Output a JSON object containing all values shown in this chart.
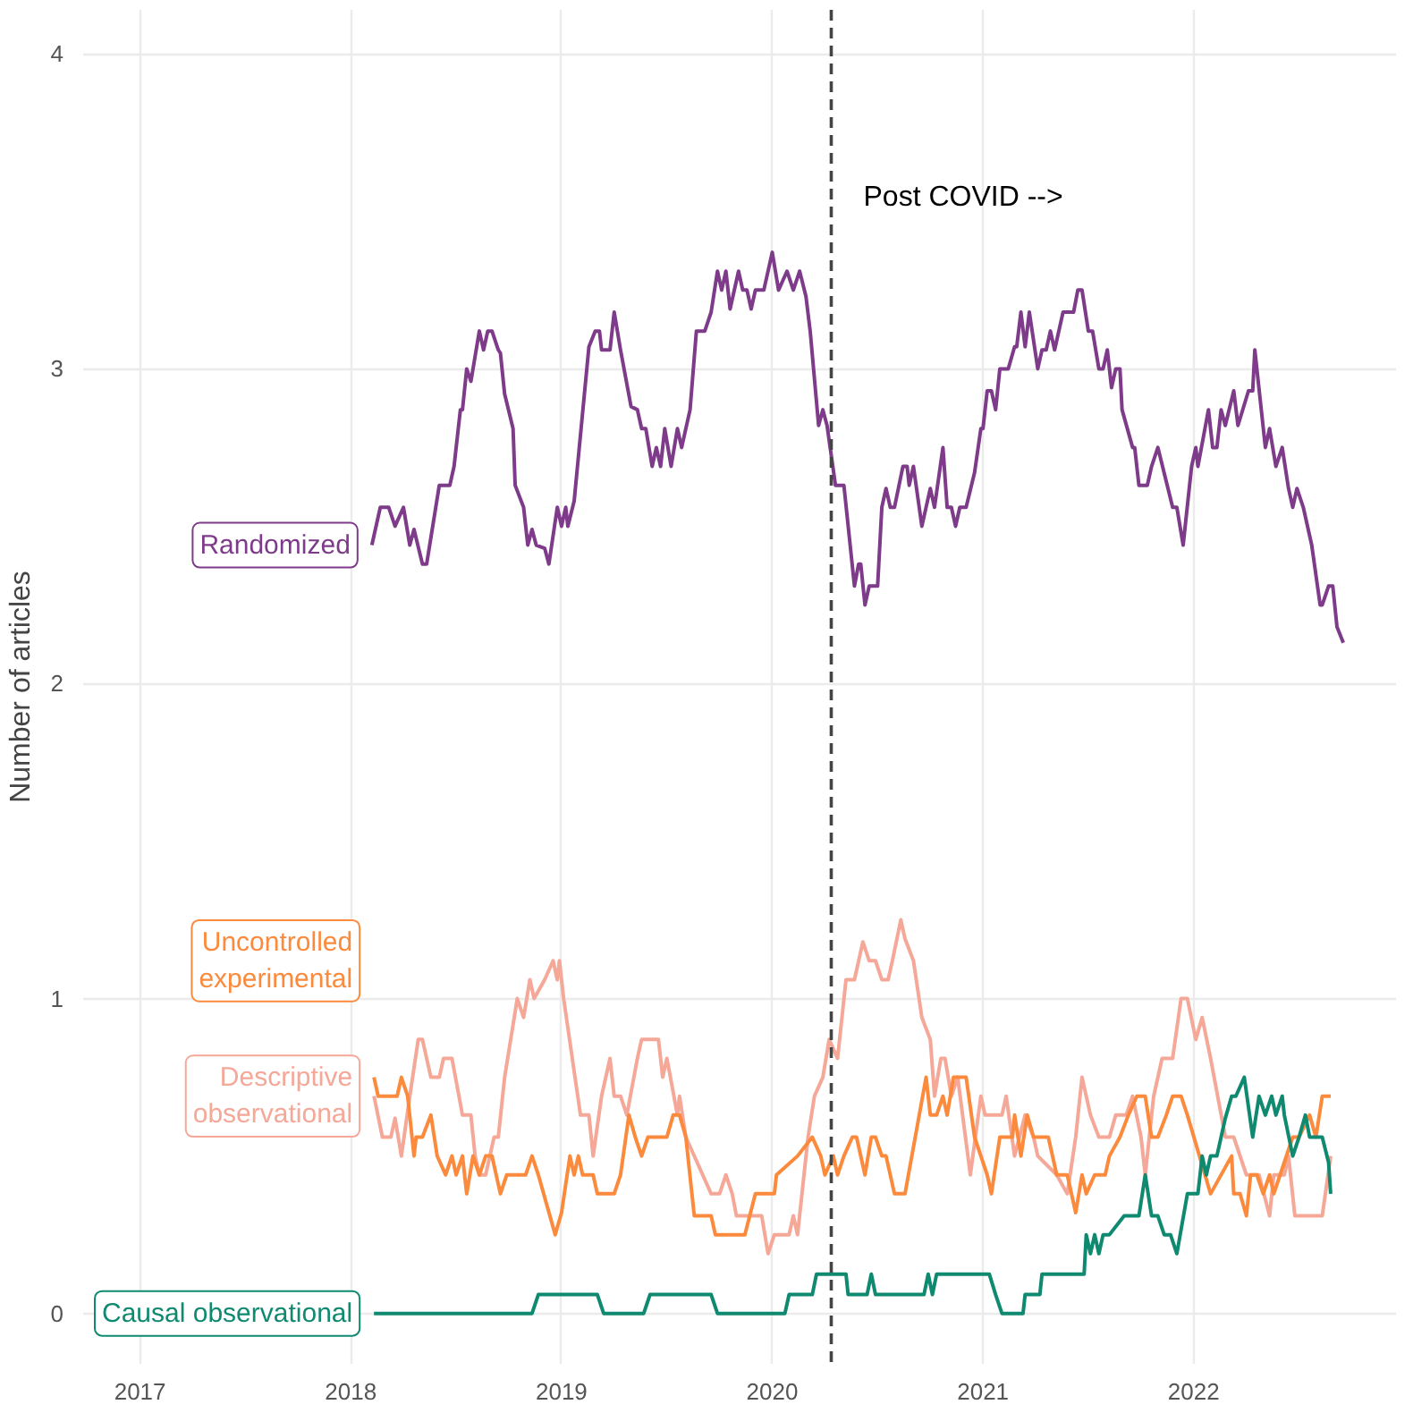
{
  "chart_data": {
    "type": "line",
    "ylabel": "Number of articles",
    "xlim": [
      2016.73,
      2022.96
    ],
    "ylim": [
      -0.16,
      4.14
    ],
    "xticks": [
      2017,
      2018,
      2019,
      2020,
      2021,
      2022
    ],
    "yticks": [
      0,
      1,
      2,
      3,
      4
    ],
    "grid": true,
    "legend": false,
    "ref_lines": [
      {
        "axis": "x",
        "value": 2020.28,
        "label": "Post COVID -->",
        "color": "#444444",
        "line_style": "dashed"
      }
    ],
    "series": [
      {
        "name": "Randomized",
        "color": "#7e3b8a",
        "x": [
          2018.1,
          2018.14,
          2018.18,
          2018.21,
          2018.25,
          2018.28,
          2018.3,
          2018.34,
          2018.36,
          2018.42,
          2018.47,
          2018.49,
          2018.52,
          2018.53,
          2018.55,
          2018.57,
          2018.61,
          2018.63,
          2018.65,
          2018.67,
          2018.7,
          2018.71,
          2018.73,
          2018.77,
          2018.78,
          2018.82,
          2018.84,
          2018.86,
          2018.88,
          2018.92,
          2018.94,
          2018.98,
          2019.0,
          2019.02,
          2019.03,
          2019.06,
          2019.13,
          2019.16,
          2019.18,
          2019.19,
          2019.23,
          2019.25,
          2019.28,
          2019.33,
          2019.36,
          2019.38,
          2019.4,
          2019.43,
          2019.45,
          2019.47,
          2019.49,
          2019.52,
          2019.55,
          2019.57,
          2019.61,
          2019.64,
          2019.68,
          2019.71,
          2019.74,
          2019.76,
          2019.78,
          2019.8,
          2019.84,
          2019.86,
          2019.88,
          2019.9,
          2019.92,
          2019.96,
          2020.0,
          2020.03,
          2020.07,
          2020.1,
          2020.13,
          2020.16,
          2020.18,
          2020.22,
          2020.24,
          2020.26,
          2020.3,
          2020.34,
          2020.39,
          2020.41,
          2020.42,
          2020.44,
          2020.46,
          2020.5,
          2020.52,
          2020.54,
          2020.56,
          2020.58,
          2020.62,
          2020.64,
          2020.65,
          2020.67,
          2020.71,
          2020.75,
          2020.77,
          2020.81,
          2020.83,
          2020.85,
          2020.87,
          2020.89,
          2020.92,
          2020.96,
          2020.99,
          2021.0,
          2021.02,
          2021.04,
          2021.06,
          2021.08,
          2021.12,
          2021.15,
          2021.16,
          2021.18,
          2021.2,
          2021.22,
          2021.26,
          2021.28,
          2021.3,
          2021.32,
          2021.34,
          2021.38,
          2021.43,
          2021.45,
          2021.47,
          2021.5,
          2021.52,
          2021.55,
          2021.57,
          2021.59,
          2021.61,
          2021.63,
          2021.65,
          2021.66,
          2021.71,
          2021.72,
          2021.74,
          2021.78,
          2021.8,
          2021.83,
          2021.9,
          2021.92,
          2021.95,
          2021.99,
          2022.01,
          2022.02,
          2022.07,
          2022.09,
          2022.11,
          2022.13,
          2022.15,
          2022.19,
          2022.21,
          2022.26,
          2022.28,
          2022.29,
          2022.34,
          2022.36,
          2022.39,
          2022.42,
          2022.45,
          2022.47,
          2022.49,
          2022.52,
          2022.56,
          2022.6,
          2022.61,
          2022.64,
          2022.66,
          2022.68,
          2022.71
        ],
        "values": [
          2.44,
          2.56,
          2.56,
          2.5,
          2.56,
          2.44,
          2.49,
          2.38,
          2.38,
          2.63,
          2.63,
          2.69,
          2.87,
          2.87,
          3.0,
          2.96,
          3.12,
          3.06,
          3.12,
          3.12,
          3.06,
          3.05,
          2.92,
          2.81,
          2.63,
          2.56,
          2.44,
          2.49,
          2.44,
          2.43,
          2.38,
          2.56,
          2.5,
          2.56,
          2.5,
          2.58,
          3.07,
          3.12,
          3.12,
          3.06,
          3.06,
          3.18,
          3.06,
          2.88,
          2.87,
          2.81,
          2.81,
          2.69,
          2.75,
          2.69,
          2.81,
          2.69,
          2.81,
          2.75,
          2.87,
          3.12,
          3.12,
          3.18,
          3.31,
          3.25,
          3.31,
          3.19,
          3.31,
          3.25,
          3.25,
          3.19,
          3.25,
          3.25,
          3.37,
          3.25,
          3.31,
          3.25,
          3.31,
          3.23,
          3.12,
          2.82,
          2.87,
          2.82,
          2.63,
          2.63,
          2.31,
          2.38,
          2.38,
          2.25,
          2.31,
          2.31,
          2.56,
          2.62,
          2.56,
          2.56,
          2.69,
          2.69,
          2.63,
          2.69,
          2.5,
          2.62,
          2.56,
          2.75,
          2.56,
          2.56,
          2.5,
          2.56,
          2.56,
          2.67,
          2.81,
          2.81,
          2.93,
          2.93,
          2.87,
          3.0,
          3.0,
          3.07,
          3.07,
          3.18,
          3.07,
          3.18,
          3.0,
          3.06,
          3.06,
          3.12,
          3.06,
          3.18,
          3.18,
          3.25,
          3.25,
          3.12,
          3.12,
          3.0,
          3.0,
          3.06,
          2.94,
          3.0,
          3.0,
          2.87,
          2.75,
          2.75,
          2.63,
          2.63,
          2.69,
          2.75,
          2.56,
          2.56,
          2.44,
          2.69,
          2.75,
          2.69,
          2.87,
          2.75,
          2.75,
          2.87,
          2.82,
          2.93,
          2.82,
          2.93,
          2.93,
          3.06,
          2.75,
          2.81,
          2.69,
          2.75,
          2.62,
          2.56,
          2.62,
          2.56,
          2.44,
          2.25,
          2.25,
          2.31,
          2.31,
          2.18,
          2.13
        ]
      },
      {
        "name": "Descriptive\nobservational",
        "color": "#f5a798",
        "x": [
          2018.11,
          2018.15,
          2018.19,
          2018.21,
          2018.24,
          2018.28,
          2018.32,
          2018.34,
          2018.38,
          2018.42,
          2018.44,
          2018.48,
          2018.53,
          2018.57,
          2018.59,
          2018.61,
          2018.64,
          2018.68,
          2018.7,
          2018.73,
          2018.79,
          2018.82,
          2018.85,
          2018.87,
          2018.92,
          2018.96,
          2018.98,
          2018.99,
          2019.01,
          2019.09,
          2019.13,
          2019.15,
          2019.19,
          2019.23,
          2019.25,
          2019.28,
          2019.31,
          2019.36,
          2019.38,
          2019.42,
          2019.46,
          2019.48,
          2019.5,
          2019.55,
          2019.56,
          2019.59,
          2019.67,
          2019.71,
          2019.75,
          2019.78,
          2019.81,
          2019.83,
          2019.95,
          2019.98,
          2020.01,
          2020.08,
          2020.1,
          2020.12,
          2020.17,
          2020.2,
          2020.24,
          2020.27,
          2020.31,
          2020.35,
          2020.39,
          2020.43,
          2020.46,
          2020.49,
          2020.52,
          2020.55,
          2020.57,
          2020.61,
          2020.63,
          2020.67,
          2020.71,
          2020.75,
          2020.77,
          2020.8,
          2020.82,
          2020.85,
          2020.88,
          2020.94,
          2020.99,
          2021.01,
          2021.09,
          2021.11,
          2021.15,
          2021.2,
          2021.24,
          2021.26,
          2021.35,
          2021.4,
          2021.44,
          2021.47,
          2021.51,
          2021.55,
          2021.6,
          2021.63,
          2021.68,
          2021.71,
          2021.75,
          2021.77,
          2021.81,
          2021.85,
          2021.9,
          2021.94,
          2021.97,
          2022.01,
          2022.04,
          2022.08,
          2022.15,
          2022.19,
          2022.25,
          2022.31,
          2022.36,
          2022.38,
          2022.43,
          2022.45,
          2022.48,
          2022.61,
          2022.65
        ],
        "values": [
          0.69,
          0.56,
          0.56,
          0.62,
          0.5,
          0.69,
          0.87,
          0.87,
          0.75,
          0.75,
          0.81,
          0.81,
          0.63,
          0.63,
          0.5,
          0.44,
          0.44,
          0.56,
          0.56,
          0.75,
          1.0,
          0.94,
          1.06,
          1.0,
          1.06,
          1.12,
          1.06,
          1.12,
          1.0,
          0.63,
          0.63,
          0.5,
          0.69,
          0.81,
          0.69,
          0.69,
          0.63,
          0.81,
          0.87,
          0.87,
          0.87,
          0.75,
          0.81,
          0.63,
          0.69,
          0.56,
          0.44,
          0.38,
          0.38,
          0.44,
          0.38,
          0.31,
          0.31,
          0.19,
          0.25,
          0.25,
          0.31,
          0.25,
          0.56,
          0.69,
          0.75,
          0.87,
          0.81,
          1.06,
          1.06,
          1.18,
          1.12,
          1.12,
          1.06,
          1.06,
          1.12,
          1.25,
          1.19,
          1.12,
          0.94,
          0.87,
          0.69,
          0.81,
          0.81,
          0.69,
          0.75,
          0.44,
          0.69,
          0.63,
          0.63,
          0.69,
          0.5,
          0.63,
          0.56,
          0.5,
          0.44,
          0.38,
          0.56,
          0.75,
          0.63,
          0.56,
          0.56,
          0.63,
          0.63,
          0.69,
          0.56,
          0.44,
          0.69,
          0.81,
          0.81,
          1.0,
          1.0,
          0.87,
          0.94,
          0.81,
          0.56,
          0.56,
          0.44,
          0.44,
          0.31,
          0.44,
          0.44,
          0.5,
          0.31,
          0.31,
          0.5
        ]
      },
      {
        "name": "Uncontrolled\nexperimental",
        "color": "#fb8a3c",
        "x": [
          2018.11,
          2018.13,
          2018.22,
          2018.24,
          2018.27,
          2018.3,
          2018.31,
          2018.34,
          2018.38,
          2018.41,
          2018.45,
          2018.48,
          2018.5,
          2018.53,
          2018.55,
          2018.58,
          2018.61,
          2018.64,
          2018.67,
          2018.71,
          2018.74,
          2018.83,
          2018.86,
          2018.89,
          2018.97,
          2019.0,
          2019.04,
          2019.06,
          2019.08,
          2019.1,
          2019.15,
          2019.17,
          2019.25,
          2019.28,
          2019.32,
          2019.35,
          2019.38,
          2019.41,
          2019.5,
          2019.53,
          2019.56,
          2019.59,
          2019.63,
          2019.71,
          2019.73,
          2019.87,
          2019.92,
          2020.01,
          2020.02,
          2020.12,
          2020.19,
          2020.23,
          2020.25,
          2020.29,
          2020.31,
          2020.34,
          2020.38,
          2020.4,
          2020.44,
          2020.47,
          2020.49,
          2020.52,
          2020.54,
          2020.58,
          2020.63,
          2020.73,
          2020.75,
          2020.78,
          2020.81,
          2020.83,
          2020.86,
          2020.92,
          2020.96,
          2020.99,
          2021.02,
          2021.04,
          2021.08,
          2021.14,
          2021.15,
          2021.18,
          2021.21,
          2021.24,
          2021.31,
          2021.35,
          2021.4,
          2021.44,
          2021.47,
          2021.49,
          2021.53,
          2021.58,
          2021.6,
          2021.65,
          2021.69,
          2021.73,
          2021.77,
          2021.8,
          2021.83,
          2021.87,
          2021.9,
          2021.94,
          2021.97,
          2022.08,
          2022.18,
          2022.19,
          2022.22,
          2022.25,
          2022.27,
          2022.3,
          2022.33,
          2022.36,
          2022.38,
          2022.41,
          2022.47,
          2022.5,
          2022.55,
          2022.58,
          2022.61,
          2022.65
        ],
        "values": [
          0.75,
          0.69,
          0.69,
          0.75,
          0.69,
          0.5,
          0.56,
          0.56,
          0.63,
          0.5,
          0.44,
          0.5,
          0.44,
          0.5,
          0.38,
          0.5,
          0.44,
          0.5,
          0.5,
          0.38,
          0.44,
          0.44,
          0.5,
          0.44,
          0.25,
          0.32,
          0.5,
          0.44,
          0.5,
          0.44,
          0.44,
          0.38,
          0.38,
          0.44,
          0.63,
          0.56,
          0.5,
          0.56,
          0.56,
          0.63,
          0.63,
          0.56,
          0.31,
          0.31,
          0.25,
          0.25,
          0.38,
          0.38,
          0.44,
          0.5,
          0.56,
          0.5,
          0.44,
          0.5,
          0.44,
          0.5,
          0.56,
          0.56,
          0.44,
          0.56,
          0.56,
          0.5,
          0.5,
          0.38,
          0.38,
          0.75,
          0.63,
          0.63,
          0.69,
          0.63,
          0.75,
          0.75,
          0.56,
          0.5,
          0.44,
          0.38,
          0.56,
          0.56,
          0.63,
          0.5,
          0.63,
          0.56,
          0.56,
          0.44,
          0.44,
          0.32,
          0.44,
          0.38,
          0.44,
          0.44,
          0.5,
          0.56,
          0.63,
          0.69,
          0.69,
          0.56,
          0.56,
          0.63,
          0.69,
          0.69,
          0.63,
          0.38,
          0.5,
          0.38,
          0.38,
          0.31,
          0.44,
          0.44,
          0.38,
          0.44,
          0.38,
          0.44,
          0.56,
          0.56,
          0.63,
          0.56,
          0.69,
          0.69
        ]
      },
      {
        "name": "Causal observational",
        "color": "#0f8a70",
        "x": [
          2018.11,
          2018.86,
          2018.89,
          2019.17,
          2019.2,
          2019.39,
          2019.42,
          2019.71,
          2019.74,
          2020.06,
          2020.08,
          2020.19,
          2020.21,
          2020.35,
          2020.36,
          2020.45,
          2020.47,
          2020.49,
          2020.72,
          2020.74,
          2020.76,
          2020.78,
          2021.03,
          2021.06,
          2021.09,
          2021.19,
          2021.2,
          2021.27,
          2021.28,
          2021.48,
          2021.49,
          2021.51,
          2021.53,
          2021.55,
          2021.57,
          2021.6,
          2021.67,
          2021.74,
          2021.77,
          2021.8,
          2021.83,
          2021.86,
          2021.89,
          2021.92,
          2021.97,
          2021.98,
          2022.02,
          2022.04,
          2022.06,
          2022.08,
          2022.11,
          2022.15,
          2022.18,
          2022.2,
          2022.24,
          2022.28,
          2022.31,
          2022.34,
          2022.37,
          2022.39,
          2022.42,
          2022.43,
          2022.47,
          2022.5,
          2022.53,
          2022.55,
          2022.61,
          2022.64,
          2022.65
        ],
        "values": [
          0,
          0,
          0.06,
          0.06,
          0,
          0,
          0.06,
          0.06,
          0,
          0,
          0.06,
          0.06,
          0.125,
          0.125,
          0.06,
          0.06,
          0.125,
          0.06,
          0.06,
          0.125,
          0.06,
          0.125,
          0.125,
          0.06,
          0,
          0,
          0.06,
          0.06,
          0.125,
          0.125,
          0.25,
          0.19,
          0.25,
          0.19,
          0.25,
          0.25,
          0.31,
          0.31,
          0.44,
          0.31,
          0.31,
          0.25,
          0.25,
          0.19,
          0.38,
          0.38,
          0.38,
          0.5,
          0.44,
          0.5,
          0.5,
          0.62,
          0.69,
          0.69,
          0.75,
          0.56,
          0.69,
          0.63,
          0.69,
          0.63,
          0.69,
          0.63,
          0.5,
          0.56,
          0.63,
          0.56,
          0.56,
          0.48,
          0.38
        ]
      }
    ]
  }
}
